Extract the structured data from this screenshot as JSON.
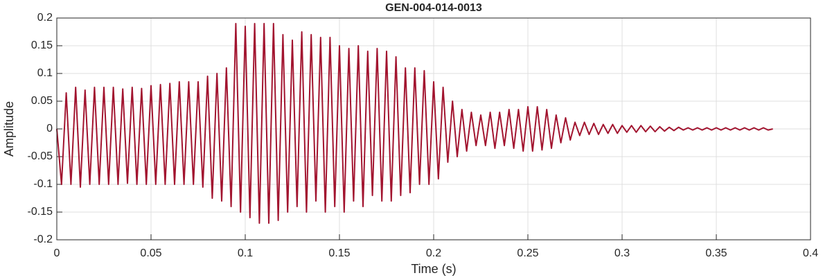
{
  "chart_data": {
    "type": "line",
    "title": "GEN-004-014-0013",
    "x_label": "Time (s)",
    "y_label": "Amplitude",
    "color": "#a2142f",
    "grid": true,
    "xlim": [
      0,
      0.4
    ],
    "ylim": [
      -0.2,
      0.2
    ],
    "xticks": [
      0,
      0.05,
      0.1,
      0.15,
      0.2,
      0.25,
      0.3,
      0.35,
      0.4
    ],
    "yticks": [
      -0.2,
      -0.15,
      -0.1,
      -0.05,
      0,
      0.05,
      0.1,
      0.15,
      0.2
    ],
    "x": [
      0,
      0.0025,
      0.005,
      0.0075,
      0.01,
      0.0125,
      0.015,
      0.0175,
      0.02,
      0.0225,
      0.025,
      0.0275,
      0.03,
      0.0325,
      0.035,
      0.0375,
      0.04,
      0.0425,
      0.045,
      0.0475,
      0.05,
      0.0525,
      0.055,
      0.0575,
      0.06,
      0.0625,
      0.065,
      0.0675,
      0.07,
      0.0725,
      0.075,
      0.0775,
      0.08,
      0.0825,
      0.085,
      0.0875,
      0.09,
      0.0925,
      0.095,
      0.0975,
      0.1,
      0.1025,
      0.105,
      0.1075,
      0.11,
      0.1125,
      0.115,
      0.1175,
      0.12,
      0.1225,
      0.125,
      0.1275,
      0.13,
      0.1325,
      0.135,
      0.1375,
      0.14,
      0.1425,
      0.145,
      0.1475,
      0.15,
      0.1525,
      0.155,
      0.1575,
      0.16,
      0.1625,
      0.165,
      0.1675,
      0.17,
      0.1725,
      0.175,
      0.1775,
      0.18,
      0.1825,
      0.185,
      0.1875,
      0.19,
      0.1925,
      0.195,
      0.1975,
      0.2,
      0.2025,
      0.205,
      0.2075,
      0.21,
      0.2125,
      0.215,
      0.2175,
      0.22,
      0.2225,
      0.225,
      0.2275,
      0.23,
      0.2325,
      0.235,
      0.2375,
      0.24,
      0.2425,
      0.245,
      0.2475,
      0.25,
      0.2525,
      0.255,
      0.2575,
      0.26,
      0.2625,
      0.265,
      0.2675,
      0.27,
      0.2725,
      0.275,
      0.2775,
      0.28,
      0.2825,
      0.285,
      0.2875,
      0.29,
      0.2925,
      0.295,
      0.2975,
      0.3,
      0.3025,
      0.305,
      0.3075,
      0.31,
      0.3125,
      0.315,
      0.3175,
      0.32,
      0.3225,
      0.325,
      0.3275,
      0.33,
      0.3325,
      0.335,
      0.3375,
      0.34,
      0.3425,
      0.345,
      0.3475,
      0.35,
      0.3525,
      0.355,
      0.3575,
      0.36,
      0.3625,
      0.365,
      0.3675,
      0.37,
      0.3725,
      0.375,
      0.3775,
      0.38
    ],
    "values": [
      0,
      -0.1,
      0.065,
      -0.1,
      0.075,
      -0.105,
      0.07,
      -0.1,
      0.075,
      -0.1,
      0.075,
      -0.1,
      0.075,
      -0.1,
      0.072,
      -0.098,
      0.075,
      -0.1,
      0.073,
      -0.1,
      0.078,
      -0.1,
      0.08,
      -0.1,
      0.082,
      -0.1,
      0.085,
      -0.1,
      0.085,
      -0.1,
      0.085,
      -0.105,
      0.095,
      -0.125,
      0.1,
      -0.13,
      0.11,
      -0.14,
      0.19,
      -0.15,
      0.185,
      -0.16,
      0.19,
      -0.17,
      0.19,
      -0.17,
      0.19,
      -0.165,
      0.17,
      -0.15,
      0.16,
      -0.14,
      0.175,
      -0.15,
      0.17,
      -0.13,
      0.165,
      -0.15,
      0.165,
      -0.14,
      0.15,
      -0.15,
      0.145,
      -0.13,
      0.15,
      -0.14,
      0.14,
      -0.12,
      0.145,
      -0.13,
      0.14,
      -0.13,
      0.13,
      -0.12,
      0.11,
      -0.115,
      0.11,
      -0.1,
      0.105,
      -0.1,
      0.085,
      -0.09,
      0.075,
      -0.06,
      0.05,
      -0.05,
      0.035,
      -0.04,
      0.03,
      -0.03,
      0.025,
      -0.03,
      0.03,
      -0.035,
      0.03,
      -0.03,
      0.035,
      -0.035,
      0.035,
      -0.04,
      0.04,
      -0.04,
      0.04,
      -0.038,
      0.035,
      -0.035,
      0.025,
      -0.025,
      0.02,
      -0.02,
      0.012,
      -0.012,
      0.012,
      -0.01,
      0.01,
      -0.01,
      0.008,
      -0.008,
      0.008,
      -0.008,
      0.006,
      -0.006,
      0.006,
      -0.006,
      0.006,
      -0.005,
      0.005,
      -0.005,
      0.004,
      -0.004,
      0.003,
      -0.003,
      0.003,
      -0.002,
      0.002,
      -0.002,
      0.002,
      -0.002,
      0.002,
      -0.002,
      0.002,
      -0.002,
      0.002,
      -0.002,
      0.002,
      -0.002,
      0.002,
      -0.002,
      0.002,
      -0.002,
      0.002,
      -0.002,
      0
    ]
  }
}
